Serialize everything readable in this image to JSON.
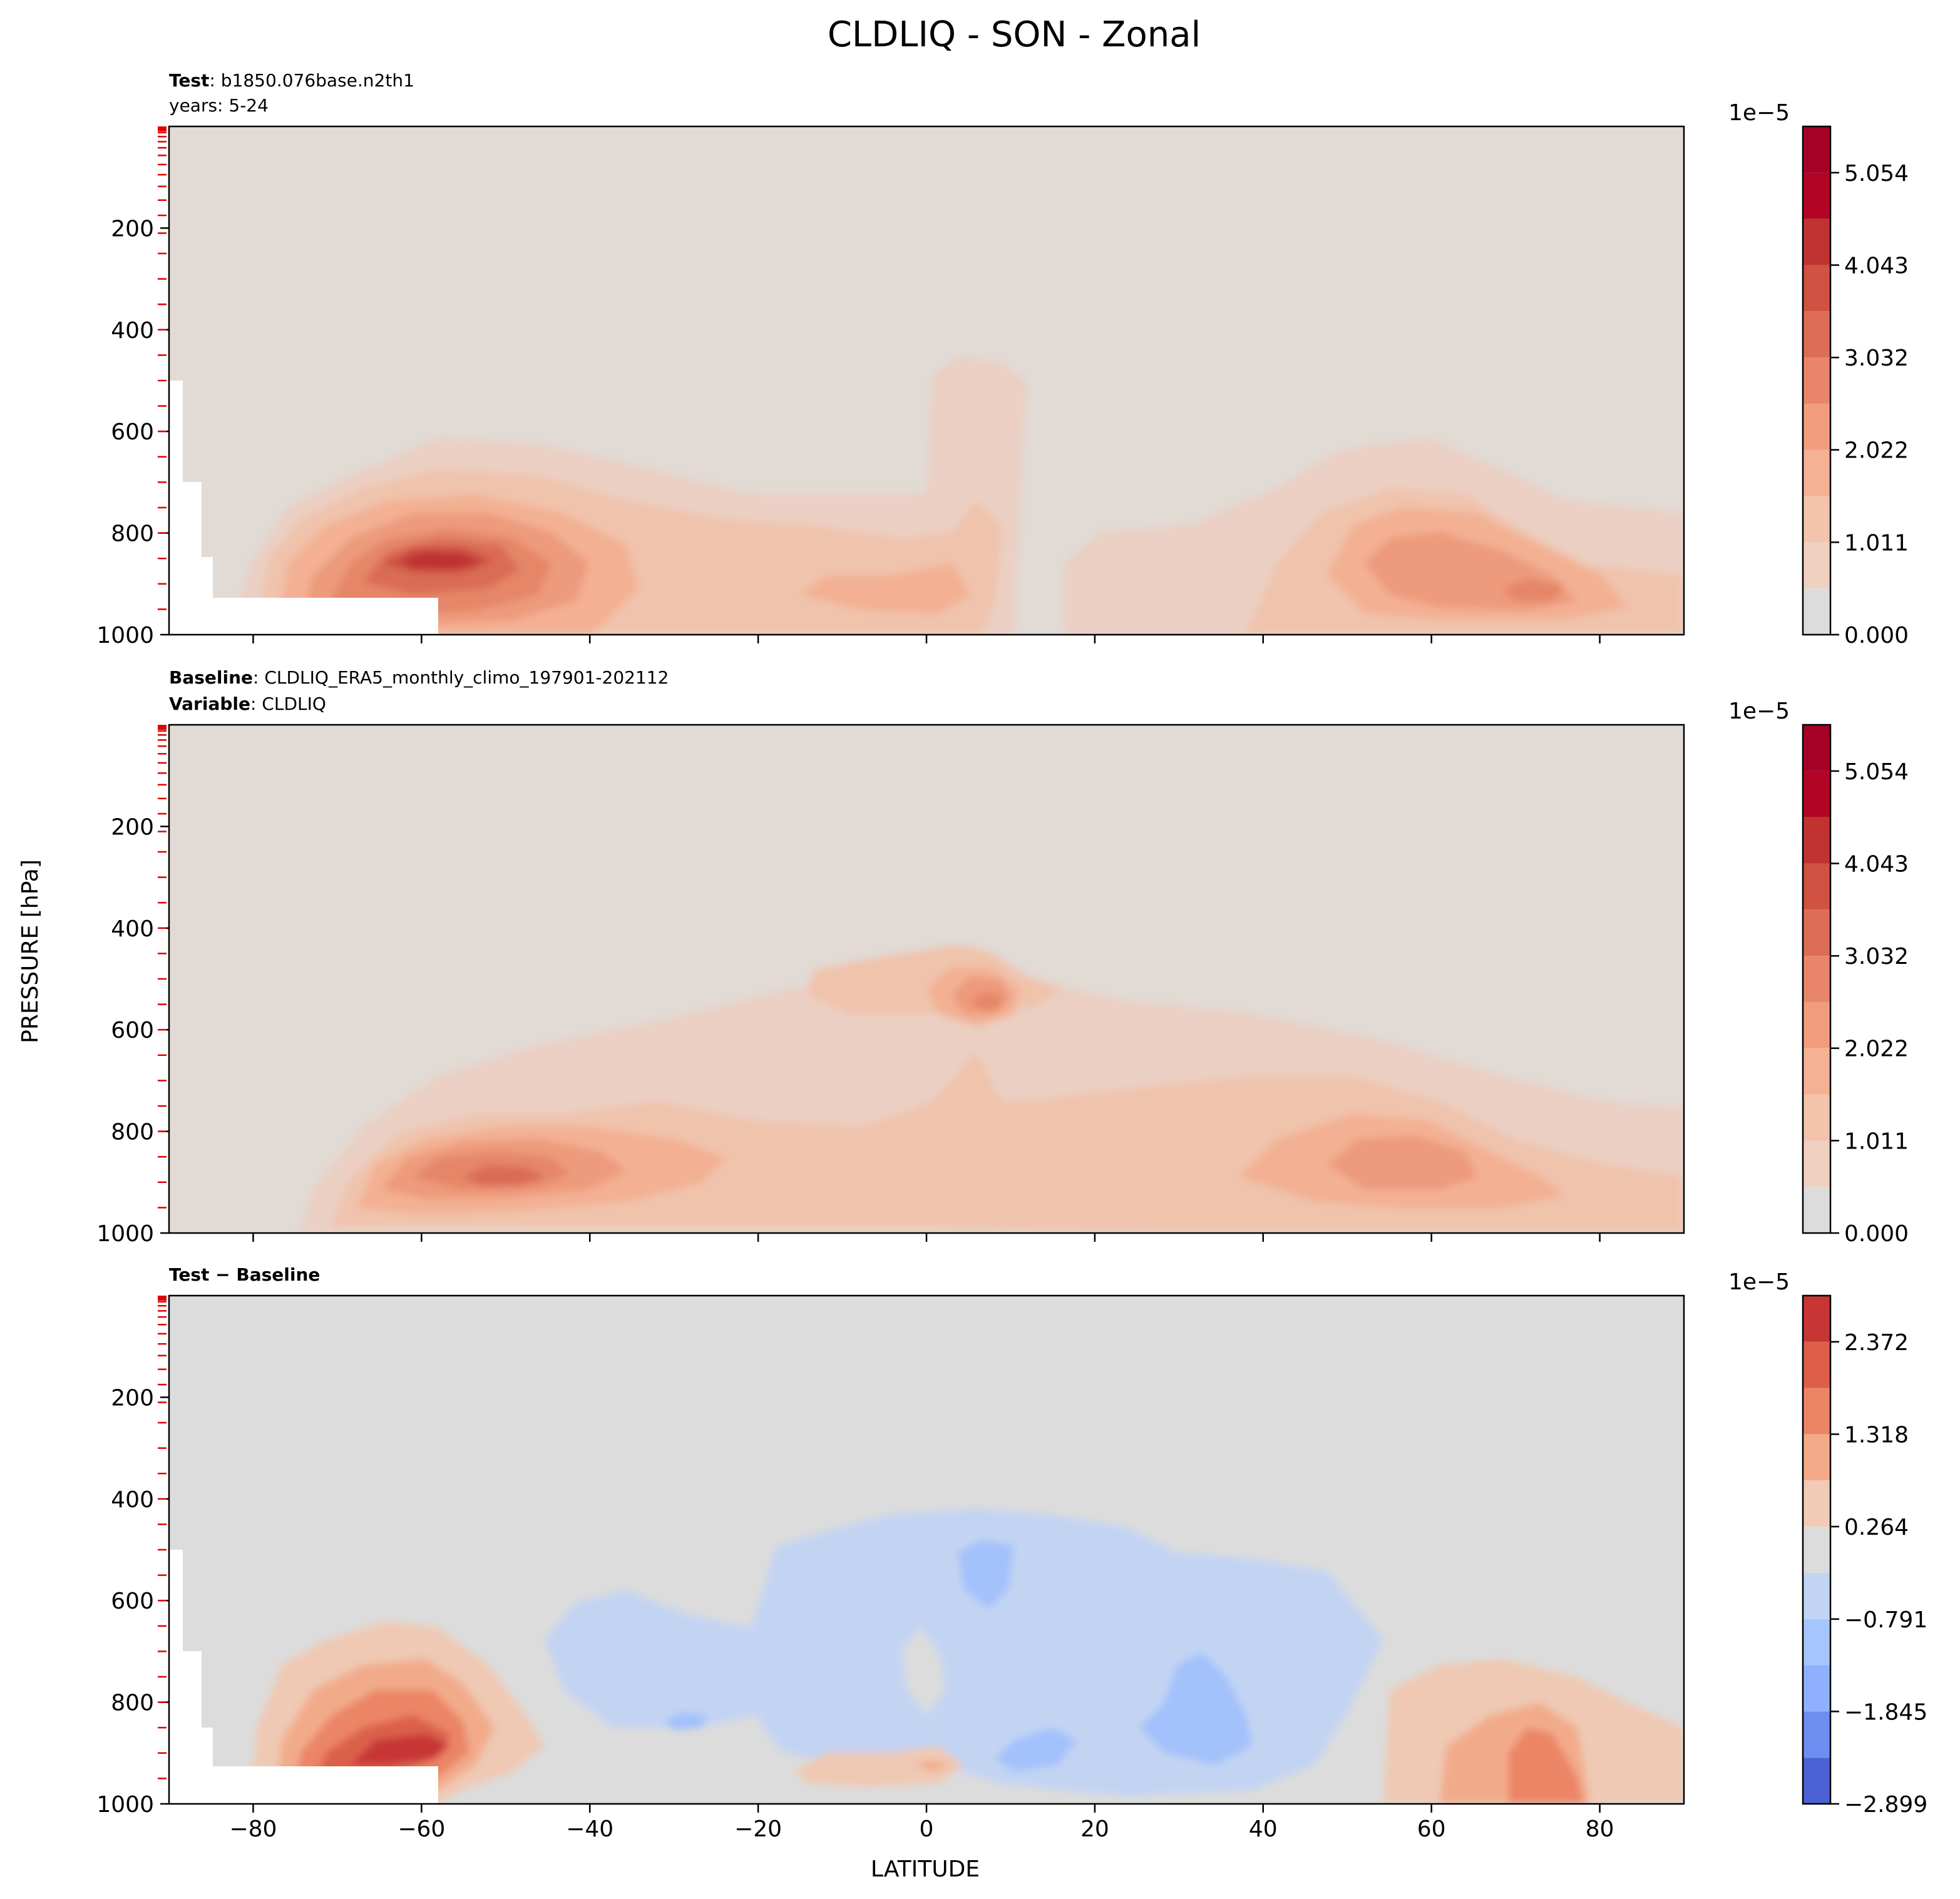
{
  "suptitle": "CLDLIQ - SON - Zonal",
  "ylabel": "PRESSURE [hPa]",
  "xlabel": "LATITUDE",
  "x_ticks": [
    -80,
    -60,
    -40,
    -20,
    0,
    20,
    40,
    60,
    80
  ],
  "x_tick_labels": [
    "−80",
    "−60",
    "−40",
    "−20",
    "0",
    "20",
    "40",
    "60",
    "80"
  ],
  "y_ticks": [
    200,
    400,
    600,
    800,
    1000
  ],
  "y_tick_labels": [
    "200",
    "400",
    "600",
    "800",
    "1000"
  ],
  "model_levels_hpa": [
    3,
    7,
    12,
    20,
    30,
    42,
    57,
    75,
    95,
    118,
    145,
    175,
    210,
    250,
    300,
    350,
    400,
    450,
    500,
    550,
    600,
    650,
    700,
    750,
    800,
    850,
    900,
    950
  ],
  "panels": [
    {
      "header_line1_bold": "Test",
      "header_line1_rest": ": b1850.076base.n2th1",
      "header_line2_bold": "",
      "header_line2_rest": "years: 5-24",
      "colorbar_exponent": "1e−5",
      "colorbar_tick_labels": [
        "5.054",
        "4.043",
        "3.032",
        "2.022",
        "1.011",
        "0.000"
      ]
    },
    {
      "header_line1_bold": "Baseline",
      "header_line1_rest": ": CLDLIQ_ERA5_monthly_climo_197901-202112",
      "header_line2_bold": "Variable",
      "header_line2_rest": ": CLDLIQ",
      "colorbar_exponent": "1e−5",
      "colorbar_tick_labels": [
        "5.054",
        "4.043",
        "3.032",
        "2.022",
        "1.011",
        "0.000"
      ]
    },
    {
      "header_line1_bold": "Test − Baseline",
      "header_line1_rest": "",
      "header_line2_bold": "",
      "header_line2_rest": "",
      "colorbar_exponent": "1e−5",
      "colorbar_tick_labels": [
        "2.372",
        "1.318",
        "0.264",
        "−0.791",
        "−1.845",
        "−2.899"
      ]
    }
  ],
  "chart_data": [
    {
      "type": "heatmap",
      "subtype": "filled-contour",
      "title": "Test: b1850.076base.n2th1 / years: 5-24",
      "xlabel": "LATITUDE",
      "ylabel": "PRESSURE [hPa]",
      "xlim": [
        -90,
        90
      ],
      "ylim": [
        1000,
        0
      ],
      "color_scale": "1e-5",
      "color_levels": [
        0.0,
        0.505,
        1.011,
        1.516,
        2.022,
        2.527,
        3.032,
        3.538,
        4.043,
        4.549,
        5.054,
        5.56
      ],
      "colorbar_ticks": [
        0.0,
        1.011,
        2.022,
        3.032,
        4.043,
        5.054
      ],
      "colors": [
        "#dddcdc",
        "#efd0c1",
        "#f3c3ab",
        "#f5b193",
        "#f19d7d",
        "#e8856a",
        "#dd6d56",
        "#d05243",
        "#c13330",
        "#b40426",
        "#a50026"
      ],
      "features": [
        {
          "name": "SH low-level max",
          "lat": -55,
          "pressure_hpa": 850,
          "value": 5.3
        },
        {
          "name": "Equatorial column",
          "lat": 5,
          "pressure_hpa": 500,
          "value": 0.8
        },
        {
          "name": "NH low-level max",
          "lat": 72,
          "pressure_hpa": 920,
          "value": 3.5
        },
        {
          "name": "Missing data (Antarctica)",
          "lat_range": [
            -90,
            -58
          ],
          "pressure_range_hpa": [
            930,
            1000
          ]
        }
      ]
    },
    {
      "type": "heatmap",
      "subtype": "filled-contour",
      "title": "Baseline: CLDLIQ_ERA5_monthly_climo_197901-202112 / Variable: CLDLIQ",
      "xlabel": "LATITUDE",
      "ylabel": "PRESSURE [hPa]",
      "xlim": [
        -90,
        90
      ],
      "ylim": [
        1000,
        0
      ],
      "color_scale": "1e-5",
      "color_levels": [
        0.0,
        0.505,
        1.011,
        1.516,
        2.022,
        2.527,
        3.032,
        3.538,
        4.043,
        4.549,
        5.054,
        5.56
      ],
      "colorbar_ticks": [
        0.0,
        1.011,
        2.022,
        3.032,
        4.043,
        5.054
      ],
      "colors": [
        "#dddcdc",
        "#efd0c1",
        "#f3c3ab",
        "#f5b193",
        "#f19d7d",
        "#e8856a",
        "#dd6d56",
        "#d05243",
        "#c13330",
        "#b40426",
        "#a50026"
      ],
      "features": [
        {
          "name": "SH low-level max",
          "lat": -50,
          "pressure_hpa": 890,
          "value": 3.6
        },
        {
          "name": "Mid-level tropical max",
          "lat": 7,
          "pressure_hpa": 555,
          "value": 2.5
        },
        {
          "name": "NH low-level max",
          "lat": 60,
          "pressure_hpa": 880,
          "value": 2.7
        }
      ]
    },
    {
      "type": "heatmap",
      "subtype": "filled-contour",
      "title": "Test − Baseline",
      "xlabel": "LATITUDE",
      "ylabel": "PRESSURE [hPa]",
      "xlim": [
        -90,
        90
      ],
      "ylim": [
        1000,
        0
      ],
      "color_scale": "1e-5",
      "color_levels": [
        -2.899,
        -2.372,
        -1.845,
        -1.318,
        -0.791,
        -0.264,
        0.264,
        0.791,
        1.318,
        1.845,
        2.372,
        2.899
      ],
      "colorbar_ticks": [
        -2.899,
        -1.845,
        -0.791,
        0.264,
        1.318,
        2.372
      ],
      "colors": [
        "#4a62d3",
        "#6d8ef0",
        "#8fb0fe",
        "#a7c5fd",
        "#c3d5f4",
        "#dddcdc",
        "#f2cbb7",
        "#f4aa89",
        "#ec8466",
        "#dd5f4b",
        "#c73635"
      ],
      "features": [
        {
          "name": "SH positive anomaly",
          "lat": -60,
          "pressure_hpa": 850,
          "value": 2.3
        },
        {
          "name": "Tropical negative anomaly",
          "lat": 8,
          "pressure_hpa": 540,
          "value": -1.0
        },
        {
          "name": "Subtropical negative anomaly",
          "lat": 33,
          "pressure_hpa": 840,
          "value": -1.1
        },
        {
          "name": "NH positive anomaly",
          "lat": 73,
          "pressure_hpa": 900,
          "value": 1.5
        }
      ]
    }
  ]
}
